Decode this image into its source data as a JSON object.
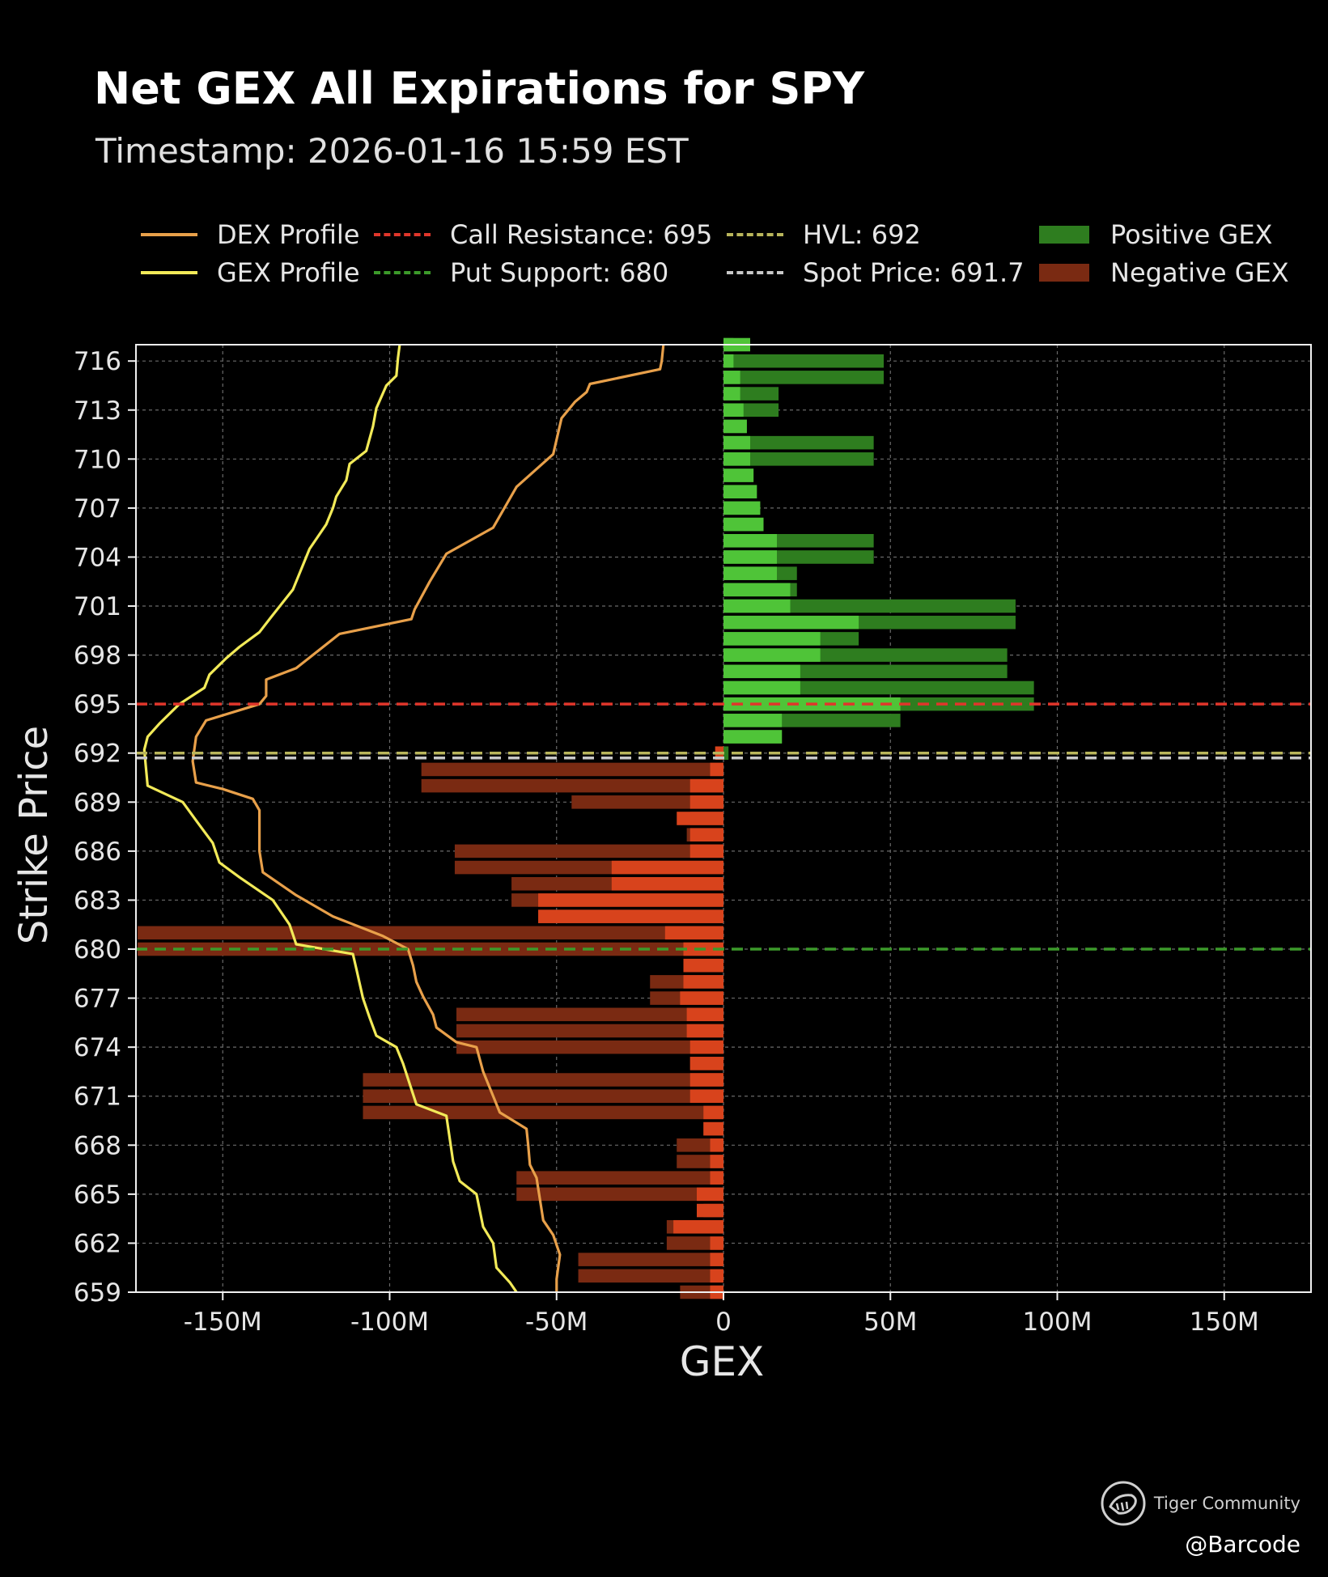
{
  "chart_data": {
    "type": "bar",
    "orientation": "horizontal",
    "title": "Net GEX All Expirations for SPY",
    "subtitle": "Timestamp: 2026-01-16 15:59 EST",
    "xlabel": "GEX",
    "ylabel": "Strike Price",
    "xlim": [
      -176,
      176
    ],
    "ylim": [
      659,
      717
    ],
    "x_unit": "M",
    "grid": true,
    "legend_position": "top",
    "x_ticks": [
      {
        "value": -150,
        "label": "-150M"
      },
      {
        "value": -100,
        "label": "-100M"
      },
      {
        "value": -50,
        "label": "-50M"
      },
      {
        "value": 0,
        "label": "0"
      },
      {
        "value": 50,
        "label": "50M"
      },
      {
        "value": 100,
        "label": "100M"
      },
      {
        "value": 150,
        "label": "150M"
      }
    ],
    "y_ticks": [
      {
        "value": 716,
        "label": "716"
      },
      {
        "value": 713,
        "label": "713"
      },
      {
        "value": 710,
        "label": "710"
      },
      {
        "value": 707,
        "label": "707"
      },
      {
        "value": 704,
        "label": "704"
      },
      {
        "value": 701,
        "label": "701"
      },
      {
        "value": 698,
        "label": "698"
      },
      {
        "value": 695,
        "label": "695"
      },
      {
        "value": 692,
        "label": "692"
      },
      {
        "value": 689,
        "label": "689"
      },
      {
        "value": 686,
        "label": "686"
      },
      {
        "value": 683,
        "label": "683"
      },
      {
        "value": 680,
        "label": "680"
      },
      {
        "value": 677,
        "label": "677"
      },
      {
        "value": 674,
        "label": "674"
      },
      {
        "value": 671,
        "label": "671"
      },
      {
        "value": 668,
        "label": "668"
      },
      {
        "value": 665,
        "label": "665"
      },
      {
        "value": 662,
        "label": "662"
      },
      {
        "value": 659,
        "label": "659"
      }
    ],
    "gex_bars": [
      {
        "strike": 717,
        "value": 3
      },
      {
        "strike": 716,
        "value": 48
      },
      {
        "strike": 715,
        "value": 48
      },
      {
        "strike": 714,
        "value": 16.5
      },
      {
        "strike": 713,
        "value": 16.5
      },
      {
        "strike": 712,
        "value": 7
      },
      {
        "strike": 711,
        "value": 45
      },
      {
        "strike": 710,
        "value": 45
      },
      {
        "strike": 709,
        "value": 9
      },
      {
        "strike": 708,
        "value": 10
      },
      {
        "strike": 707,
        "value": 11
      },
      {
        "strike": 706,
        "value": 12
      },
      {
        "strike": 705,
        "value": 45
      },
      {
        "strike": 704,
        "value": 45
      },
      {
        "strike": 703,
        "value": 22
      },
      {
        "strike": 702,
        "value": 22
      },
      {
        "strike": 701,
        "value": 87.5
      },
      {
        "strike": 700,
        "value": 87.5
      },
      {
        "strike": 699,
        "value": 40.5
      },
      {
        "strike": 698,
        "value": 85
      },
      {
        "strike": 697,
        "value": 85
      },
      {
        "strike": 696,
        "value": 93
      },
      {
        "strike": 695,
        "value": 93
      },
      {
        "strike": 694,
        "value": 53
      },
      {
        "strike": 693,
        "value": 17.5
      },
      {
        "strike": 692,
        "value": 1.5
      },
      {
        "strike": 691,
        "value": -90.5
      },
      {
        "strike": 690,
        "value": -90.5
      },
      {
        "strike": 689,
        "value": -45.5
      },
      {
        "strike": 688,
        "value": -10
      },
      {
        "strike": 687,
        "value": -11
      },
      {
        "strike": 686,
        "value": -80.5
      },
      {
        "strike": 685,
        "value": -80.5
      },
      {
        "strike": 684,
        "value": -63.5
      },
      {
        "strike": 683,
        "value": -63.5
      },
      {
        "strike": 682,
        "value": -55.5
      },
      {
        "strike": 681,
        "value": -175.5
      },
      {
        "strike": 680,
        "value": -175.5
      },
      {
        "strike": 679,
        "value": -12
      },
      {
        "strike": 678,
        "value": -22
      },
      {
        "strike": 677,
        "value": -22
      },
      {
        "strike": 676,
        "value": -80
      },
      {
        "strike": 675,
        "value": -80
      },
      {
        "strike": 674,
        "value": -80
      },
      {
        "strike": 673,
        "value": -10
      },
      {
        "strike": 672,
        "value": -108
      },
      {
        "strike": 671,
        "value": -108
      },
      {
        "strike": 670,
        "value": -108
      },
      {
        "strike": 669,
        "value": -6
      },
      {
        "strike": 668,
        "value": -14
      },
      {
        "strike": 667,
        "value": -14
      },
      {
        "strike": 666,
        "value": -62
      },
      {
        "strike": 665,
        "value": -62
      },
      {
        "strike": 664,
        "value": -6
      },
      {
        "strike": 663,
        "value": -17
      },
      {
        "strike": 662,
        "value": -17
      },
      {
        "strike": 661,
        "value": -43.5
      },
      {
        "strike": 660,
        "value": -43.5
      },
      {
        "strike": 659,
        "value": -13
      }
    ],
    "gex_bars_overlay": [
      {
        "strike": 717,
        "value": 8
      },
      {
        "strike": 716,
        "value": 3
      },
      {
        "strike": 715,
        "value": 5
      },
      {
        "strike": 714,
        "value": 5
      },
      {
        "strike": 713,
        "value": 6
      },
      {
        "strike": 712,
        "value": 7
      },
      {
        "strike": 711,
        "value": 8
      },
      {
        "strike": 710,
        "value": 8
      },
      {
        "strike": 709,
        "value": 9
      },
      {
        "strike": 708,
        "value": 10
      },
      {
        "strike": 707,
        "value": 11
      },
      {
        "strike": 706,
        "value": 12
      },
      {
        "strike": 705,
        "value": 16
      },
      {
        "strike": 704,
        "value": 16
      },
      {
        "strike": 703,
        "value": 16
      },
      {
        "strike": 702,
        "value": 20
      },
      {
        "strike": 701,
        "value": 20
      },
      {
        "strike": 700,
        "value": 40.5
      },
      {
        "strike": 699,
        "value": 29
      },
      {
        "strike": 698,
        "value": 29
      },
      {
        "strike": 697,
        "value": 23
      },
      {
        "strike": 696,
        "value": 23
      },
      {
        "strike": 695,
        "value": 53
      },
      {
        "strike": 694,
        "value": 17.5
      },
      {
        "strike": 693,
        "value": 17.5
      },
      {
        "strike": 692,
        "value": -2.5
      },
      {
        "strike": 691,
        "value": -4
      },
      {
        "strike": 690,
        "value": -10
      },
      {
        "strike": 689,
        "value": -10
      },
      {
        "strike": 688,
        "value": -14
      },
      {
        "strike": 687,
        "value": -10
      },
      {
        "strike": 686,
        "value": -10
      },
      {
        "strike": 685,
        "value": -33.5
      },
      {
        "strike": 684,
        "value": -33.5
      },
      {
        "strike": 683,
        "value": -55.5
      },
      {
        "strike": 682,
        "value": -55.5
      },
      {
        "strike": 681,
        "value": -17.5
      },
      {
        "strike": 680,
        "value": -12
      },
      {
        "strike": 679,
        "value": -12
      },
      {
        "strike": 678,
        "value": -12
      },
      {
        "strike": 677,
        "value": -13
      },
      {
        "strike": 676,
        "value": -11
      },
      {
        "strike": 675,
        "value": -11
      },
      {
        "strike": 674,
        "value": -10
      },
      {
        "strike": 673,
        "value": -10
      },
      {
        "strike": 672,
        "value": -10
      },
      {
        "strike": 671,
        "value": -10
      },
      {
        "strike": 670,
        "value": -6
      },
      {
        "strike": 669,
        "value": -6
      },
      {
        "strike": 668,
        "value": -4
      },
      {
        "strike": 667,
        "value": -4
      },
      {
        "strike": 666,
        "value": -4
      },
      {
        "strike": 665,
        "value": -8
      },
      {
        "strike": 664,
        "value": -8
      },
      {
        "strike": 663,
        "value": -15
      },
      {
        "strike": 662,
        "value": -4
      },
      {
        "strike": 661,
        "value": -4
      },
      {
        "strike": 660,
        "value": -4
      },
      {
        "strike": 659,
        "value": -4
      }
    ],
    "series": [
      {
        "name": "DEX Profile",
        "color": "#e8a04a",
        "points": [
          [
            -18,
            717
          ],
          [
            -18.5,
            716
          ],
          [
            -19,
            715.5
          ],
          [
            -40,
            714.6
          ],
          [
            -41,
            714.1
          ],
          [
            -44.5,
            713.5
          ],
          [
            -48.5,
            712.5
          ],
          [
            -51,
            710.3
          ],
          [
            -62,
            708.3
          ],
          [
            -69,
            705.8
          ],
          [
            -83,
            704.2
          ],
          [
            -88,
            702.5
          ],
          [
            -92.5,
            700.8
          ],
          [
            -93.5,
            700.2
          ],
          [
            -115,
            699.3
          ],
          [
            -128,
            697.2
          ],
          [
            -137,
            696.5
          ],
          [
            -137,
            695.5
          ],
          [
            -139,
            695.0
          ],
          [
            -155,
            694.0
          ],
          [
            -158,
            693.0
          ],
          [
            -159,
            691.5
          ],
          [
            -158,
            690.2
          ],
          [
            -150,
            689.8
          ],
          [
            -141,
            689.2
          ],
          [
            -139,
            688.5
          ],
          [
            -139,
            686.0
          ],
          [
            -138,
            684.7
          ],
          [
            -128,
            683.3
          ],
          [
            -117,
            682.0
          ],
          [
            -102,
            680.8
          ],
          [
            -94.5,
            680.0
          ],
          [
            -93,
            679.0
          ],
          [
            -92,
            678.0
          ],
          [
            -90,
            677.1
          ],
          [
            -87,
            676.0
          ],
          [
            -86,
            675.2
          ],
          [
            -80,
            674.3
          ],
          [
            -74,
            674.0
          ],
          [
            -72,
            672.5
          ],
          [
            -69,
            671.0
          ],
          [
            -67,
            670.0
          ],
          [
            -59,
            669.0
          ],
          [
            -58.5,
            668.0
          ],
          [
            -58,
            666.8
          ],
          [
            -56,
            666.0
          ],
          [
            -54,
            663.4
          ],
          [
            -51,
            662.5
          ],
          [
            -49,
            661.3
          ],
          [
            -50,
            659.8
          ],
          [
            -50,
            659
          ]
        ]
      },
      {
        "name": "GEX Profile",
        "color": "#f2ea58",
        "points": [
          [
            -97,
            717
          ],
          [
            -97.5,
            716.2
          ],
          [
            -98,
            715.1
          ],
          [
            -101,
            714.5
          ],
          [
            -104,
            713.1
          ],
          [
            -105,
            712.0
          ],
          [
            -107,
            710.5
          ],
          [
            -112,
            709.7
          ],
          [
            -113,
            708.7
          ],
          [
            -116,
            707.7
          ],
          [
            -117,
            707.0
          ],
          [
            -119,
            706.0
          ],
          [
            -124,
            704.5
          ],
          [
            -129,
            702.0
          ],
          [
            -136,
            700.2
          ],
          [
            -139,
            699.4
          ],
          [
            -145,
            698.5
          ],
          [
            -149,
            697.8
          ],
          [
            -154,
            696.8
          ],
          [
            -155.5,
            696.0
          ],
          [
            -163,
            695.0
          ],
          [
            -169,
            693.8
          ],
          [
            -172.5,
            693.0
          ],
          [
            -173.5,
            692.2
          ],
          [
            -172.5,
            690.0
          ],
          [
            -162,
            689.0
          ],
          [
            -157,
            687.6
          ],
          [
            -153,
            686.5
          ],
          [
            -151,
            685.3
          ],
          [
            -145,
            684.4
          ],
          [
            -135,
            683.0
          ],
          [
            -130,
            681.5
          ],
          [
            -128,
            680.3
          ],
          [
            -111,
            679.7
          ],
          [
            -110,
            678.8
          ],
          [
            -108,
            677.0
          ],
          [
            -106,
            675.8
          ],
          [
            -104,
            674.7
          ],
          [
            -98,
            674.0
          ],
          [
            -96,
            673.0
          ],
          [
            -92,
            670.5
          ],
          [
            -83,
            669.8
          ],
          [
            -81,
            667.0
          ],
          [
            -79,
            665.8
          ],
          [
            -74,
            665.0
          ],
          [
            -72,
            663.0
          ],
          [
            -69,
            662.0
          ],
          [
            -68,
            660.5
          ],
          [
            -64,
            659.6
          ],
          [
            -62,
            659
          ]
        ]
      }
    ],
    "reference_lines": [
      {
        "name": "Call Resistance",
        "strike": 695,
        "color": "#e0362b"
      },
      {
        "name": "Put Support",
        "strike": 680,
        "color": "#3c9a2a"
      },
      {
        "name": "HVL",
        "strike": 692,
        "color": "#b9b55b"
      },
      {
        "name": "Spot Price",
        "strike": 691.7,
        "color": "#c8c8c8"
      }
    ],
    "legend": [
      {
        "label": "DEX Profile",
        "style": "line",
        "color": "#e8a04a"
      },
      {
        "label": "GEX Profile",
        "style": "line",
        "color": "#f2ea58"
      },
      {
        "label": "Call Resistance: 695",
        "style": "dash",
        "color": "#e0362b"
      },
      {
        "label": "Put Support: 680",
        "style": "dash",
        "color": "#3c9a2a"
      },
      {
        "label": "HVL: 692",
        "style": "dash",
        "color": "#b9b55b"
      },
      {
        "label": "Spot Price: 691.7",
        "style": "dash",
        "color": "#c8c8c8"
      },
      {
        "label": "Positive GEX",
        "style": "rect",
        "color": "#2e7d1f"
      },
      {
        "label": "Negative GEX",
        "style": "rect",
        "color": "#7a2a12"
      }
    ],
    "colors": {
      "positive_dark": "#2e7d1f",
      "positive_light": "#4fc438",
      "negative_dark": "#7a2a12",
      "negative_light": "#d8431c"
    }
  },
  "watermark": {
    "brand": "Tiger Community",
    "handle": "@Barcode",
    "icon": "tiger-logo-icon"
  }
}
